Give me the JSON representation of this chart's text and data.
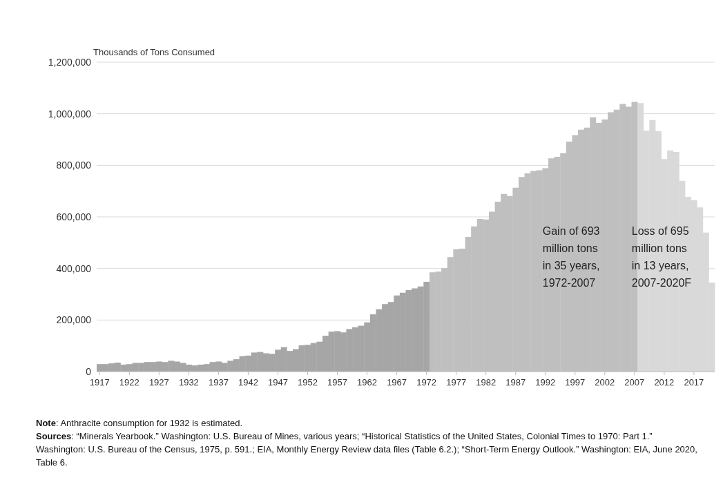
{
  "chart_data": {
    "type": "bar",
    "ylabel": "Thousands of Tons Consumed",
    "categories": [
      "1917",
      null,
      null,
      null,
      null,
      "1922",
      null,
      null,
      null,
      null,
      "1927",
      null,
      null,
      null,
      null,
      "1932",
      null,
      null,
      null,
      null,
      "1937",
      null,
      null,
      null,
      null,
      "1942",
      null,
      null,
      null,
      null,
      "1947",
      null,
      null,
      null,
      null,
      "1952",
      null,
      null,
      null,
      null,
      "1957",
      null,
      null,
      null,
      null,
      "1962",
      null,
      null,
      null,
      null,
      "1967",
      null,
      null,
      null,
      null,
      "1972",
      null,
      null,
      null,
      null,
      "1977",
      null,
      null,
      null,
      null,
      "1982",
      null,
      null,
      null,
      null,
      "1987",
      null,
      null,
      null,
      null,
      "1992",
      null,
      null,
      null,
      null,
      "1997",
      null,
      null,
      null,
      null,
      "2002",
      null,
      null,
      null,
      null,
      "2007",
      null,
      null,
      null,
      null,
      "2012",
      null,
      null,
      null,
      null,
      "2017",
      null,
      null,
      null
    ],
    "values": [
      29000,
      29000,
      32000,
      35000,
      27000,
      29000,
      34000,
      34000,
      37000,
      37000,
      39000,
      37000,
      42000,
      39000,
      34000,
      27000,
      24000,
      27000,
      29000,
      37000,
      39000,
      34000,
      42000,
      48000,
      60000,
      62000,
      74000,
      76000,
      71000,
      69000,
      85000,
      95000,
      80000,
      87000,
      102000,
      104000,
      111000,
      116000,
      139000,
      155000,
      157000,
      152000,
      165000,
      172000,
      178000,
      191000,
      222000,
      242000,
      262000,
      270000,
      295000,
      306000,
      316000,
      323000,
      330000,
      348000,
      385000,
      388000,
      401000,
      444000,
      474000,
      477000,
      522000,
      563000,
      592000,
      590000,
      620000,
      659000,
      689000,
      681000,
      713000,
      755000,
      769000,
      778000,
      781000,
      789000,
      827000,
      833000,
      847000,
      892000,
      917000,
      938000,
      946000,
      986000,
      964000,
      978000,
      1006000,
      1016000,
      1038000,
      1027000,
      1046000,
      1041000,
      934000,
      976000,
      932000,
      824000,
      858000,
      852000,
      740000,
      678000,
      665000,
      637000,
      539000,
      345000
    ],
    "colors": [
      "#a6a6a6",
      "#a6a6a6",
      "#a6a6a6",
      "#a6a6a6",
      "#a6a6a6",
      "#a6a6a6",
      "#a6a6a6",
      "#a6a6a6",
      "#a6a6a6",
      "#a6a6a6",
      "#a6a6a6",
      "#a6a6a6",
      "#a6a6a6",
      "#a6a6a6",
      "#a6a6a6",
      "#a6a6a6",
      "#a6a6a6",
      "#a6a6a6",
      "#a6a6a6",
      "#a6a6a6",
      "#a6a6a6",
      "#a6a6a6",
      "#a6a6a6",
      "#a6a6a6",
      "#a6a6a6",
      "#a6a6a6",
      "#a6a6a6",
      "#a6a6a6",
      "#a6a6a6",
      "#a6a6a6",
      "#a6a6a6",
      "#a6a6a6",
      "#a6a6a6",
      "#a6a6a6",
      "#a6a6a6",
      "#a6a6a6",
      "#a6a6a6",
      "#a6a6a6",
      "#a6a6a6",
      "#a6a6a6",
      "#a6a6a6",
      "#a6a6a6",
      "#a6a6a6",
      "#a6a6a6",
      "#a6a6a6",
      "#a6a6a6",
      "#a6a6a6",
      "#a6a6a6",
      "#a6a6a6",
      "#a6a6a6",
      "#a6a6a6",
      "#a6a6a6",
      "#a6a6a6",
      "#a6a6a6",
      "#a6a6a6",
      "#a6a6a6",
      "#bfbfbf",
      "#bfbfbf",
      "#bfbfbf",
      "#bfbfbf",
      "#bfbfbf",
      "#bfbfbf",
      "#bfbfbf",
      "#bfbfbf",
      "#bfbfbf",
      "#bfbfbf",
      "#bfbfbf",
      "#bfbfbf",
      "#bfbfbf",
      "#bfbfbf",
      "#bfbfbf",
      "#bfbfbf",
      "#bfbfbf",
      "#bfbfbf",
      "#bfbfbf",
      "#bfbfbf",
      "#bfbfbf",
      "#bfbfbf",
      "#bfbfbf",
      "#bfbfbf",
      "#bfbfbf",
      "#bfbfbf",
      "#bfbfbf",
      "#bfbfbf",
      "#bfbfbf",
      "#bfbfbf",
      "#bfbfbf",
      "#bfbfbf",
      "#bfbfbf",
      "#bfbfbf",
      "#bfbfbf",
      "#d9d9d9",
      "#d9d9d9",
      "#d9d9d9",
      "#d9d9d9",
      "#d9d9d9",
      "#d9d9d9",
      "#d9d9d9",
      "#d9d9d9",
      "#d9d9d9",
      "#d9d9d9",
      "#d9d9d9",
      "#d9d9d9",
      "#d9d9d9"
    ],
    "ylim": [
      0,
      1200000
    ],
    "yticks": [
      0,
      {
        "value": 200000,
        "label": "200,000"
      },
      {
        "value": 400000,
        "label": "400,000"
      },
      {
        "value": 600000,
        "label": "600,000"
      },
      {
        "value": 800000,
        "label": "800,000"
      },
      {
        "value": 1000000,
        "label": "1,000,000"
      },
      {
        "value": 1200000,
        "label": "1,200,000"
      }
    ],
    "grid": "y",
    "annotations": [
      {
        "text": "Gain of 693 million tons in 35 years, 1972-2007",
        "x": "1992",
        "y": 530000
      },
      {
        "text": "Loss of 695 million tons in 13 years, 2007-2020F",
        "x": "2007",
        "y": 530000
      },
      "Note: Anthracite consumption for 1932 is estimated.",
      "Sources: “Minerals Yearbook.” Washington: U.S. Bureau of Mines, various years; “Historical Statistics of the United States, Colonial Times to 1970: Part 1.” Washington: U.S. Bureau of the Census, 1975, p. 591.; EIA, Monthly Energy Review data files (Table 6.2.); “Short-Term Energy Outlook.” Washington: EIA, June 2020, Table 6."
    ]
  }
}
